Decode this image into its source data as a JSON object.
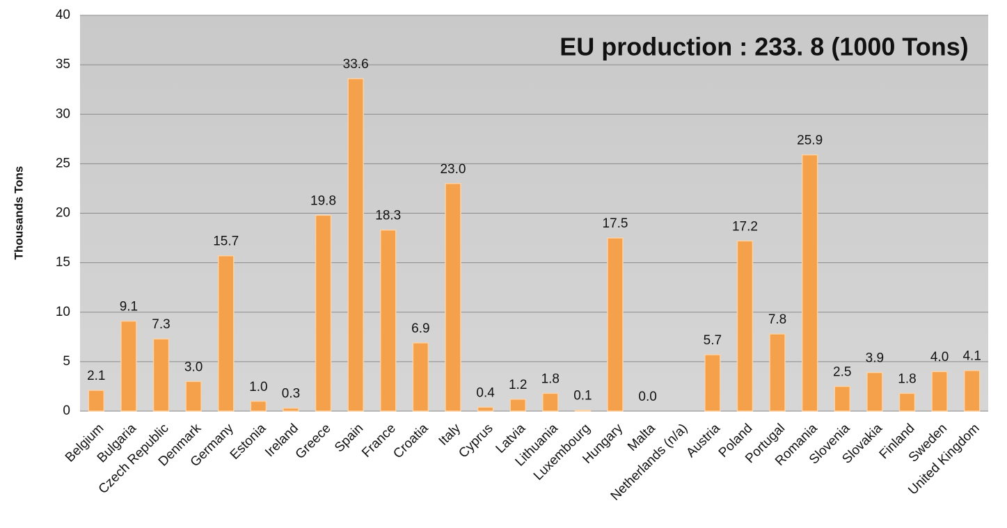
{
  "chart_data": {
    "type": "bar",
    "annotation": "EU production : 233. 8 (1000 Tons)",
    "ylabel": "Thousands Tons",
    "categories": [
      "Belgium",
      "Bulgaria",
      "Czech Republic",
      "Denmark",
      "Germany",
      "Estonia",
      "Ireland",
      "Greece",
      "Spain",
      "France",
      "Croatia",
      "Italy",
      "Cyprus",
      "Latvia",
      "Lithuania",
      "Luxembourg",
      "Hungary",
      "Malta",
      "Netherlands (n/a)",
      "Austria",
      "Poland",
      "Portugal",
      "Romania",
      "Slovenia",
      "Slovakia",
      "Finland",
      "Sweden",
      "United Kingdom"
    ],
    "values": [
      2.1,
      9.1,
      7.3,
      3.0,
      15.7,
      1.0,
      0.3,
      19.8,
      33.6,
      18.3,
      6.9,
      23.0,
      0.4,
      1.2,
      1.8,
      0.1,
      17.5,
      0.0,
      null,
      5.7,
      17.2,
      7.8,
      25.9,
      2.5,
      3.9,
      1.8,
      4.0,
      4.1
    ],
    "value_labels": [
      "2.1",
      "9.1",
      "7.3",
      "3.0",
      "15.7",
      "1.0",
      "0.3",
      "19.8",
      "33.6",
      "18.3",
      "6.9",
      "23.0",
      "0.4",
      "1.2",
      "1.8",
      "0.1",
      "17.5",
      "0.0",
      null,
      "5.7",
      "17.2",
      "7.8",
      "25.9",
      "2.5",
      "3.9",
      "1.8",
      "4.0",
      "4.1"
    ],
    "color": "#f5a04a",
    "ylim": [
      0,
      40
    ],
    "yticks": [
      0,
      5,
      10,
      15,
      20,
      25,
      30,
      35,
      40
    ],
    "grid": true
  }
}
